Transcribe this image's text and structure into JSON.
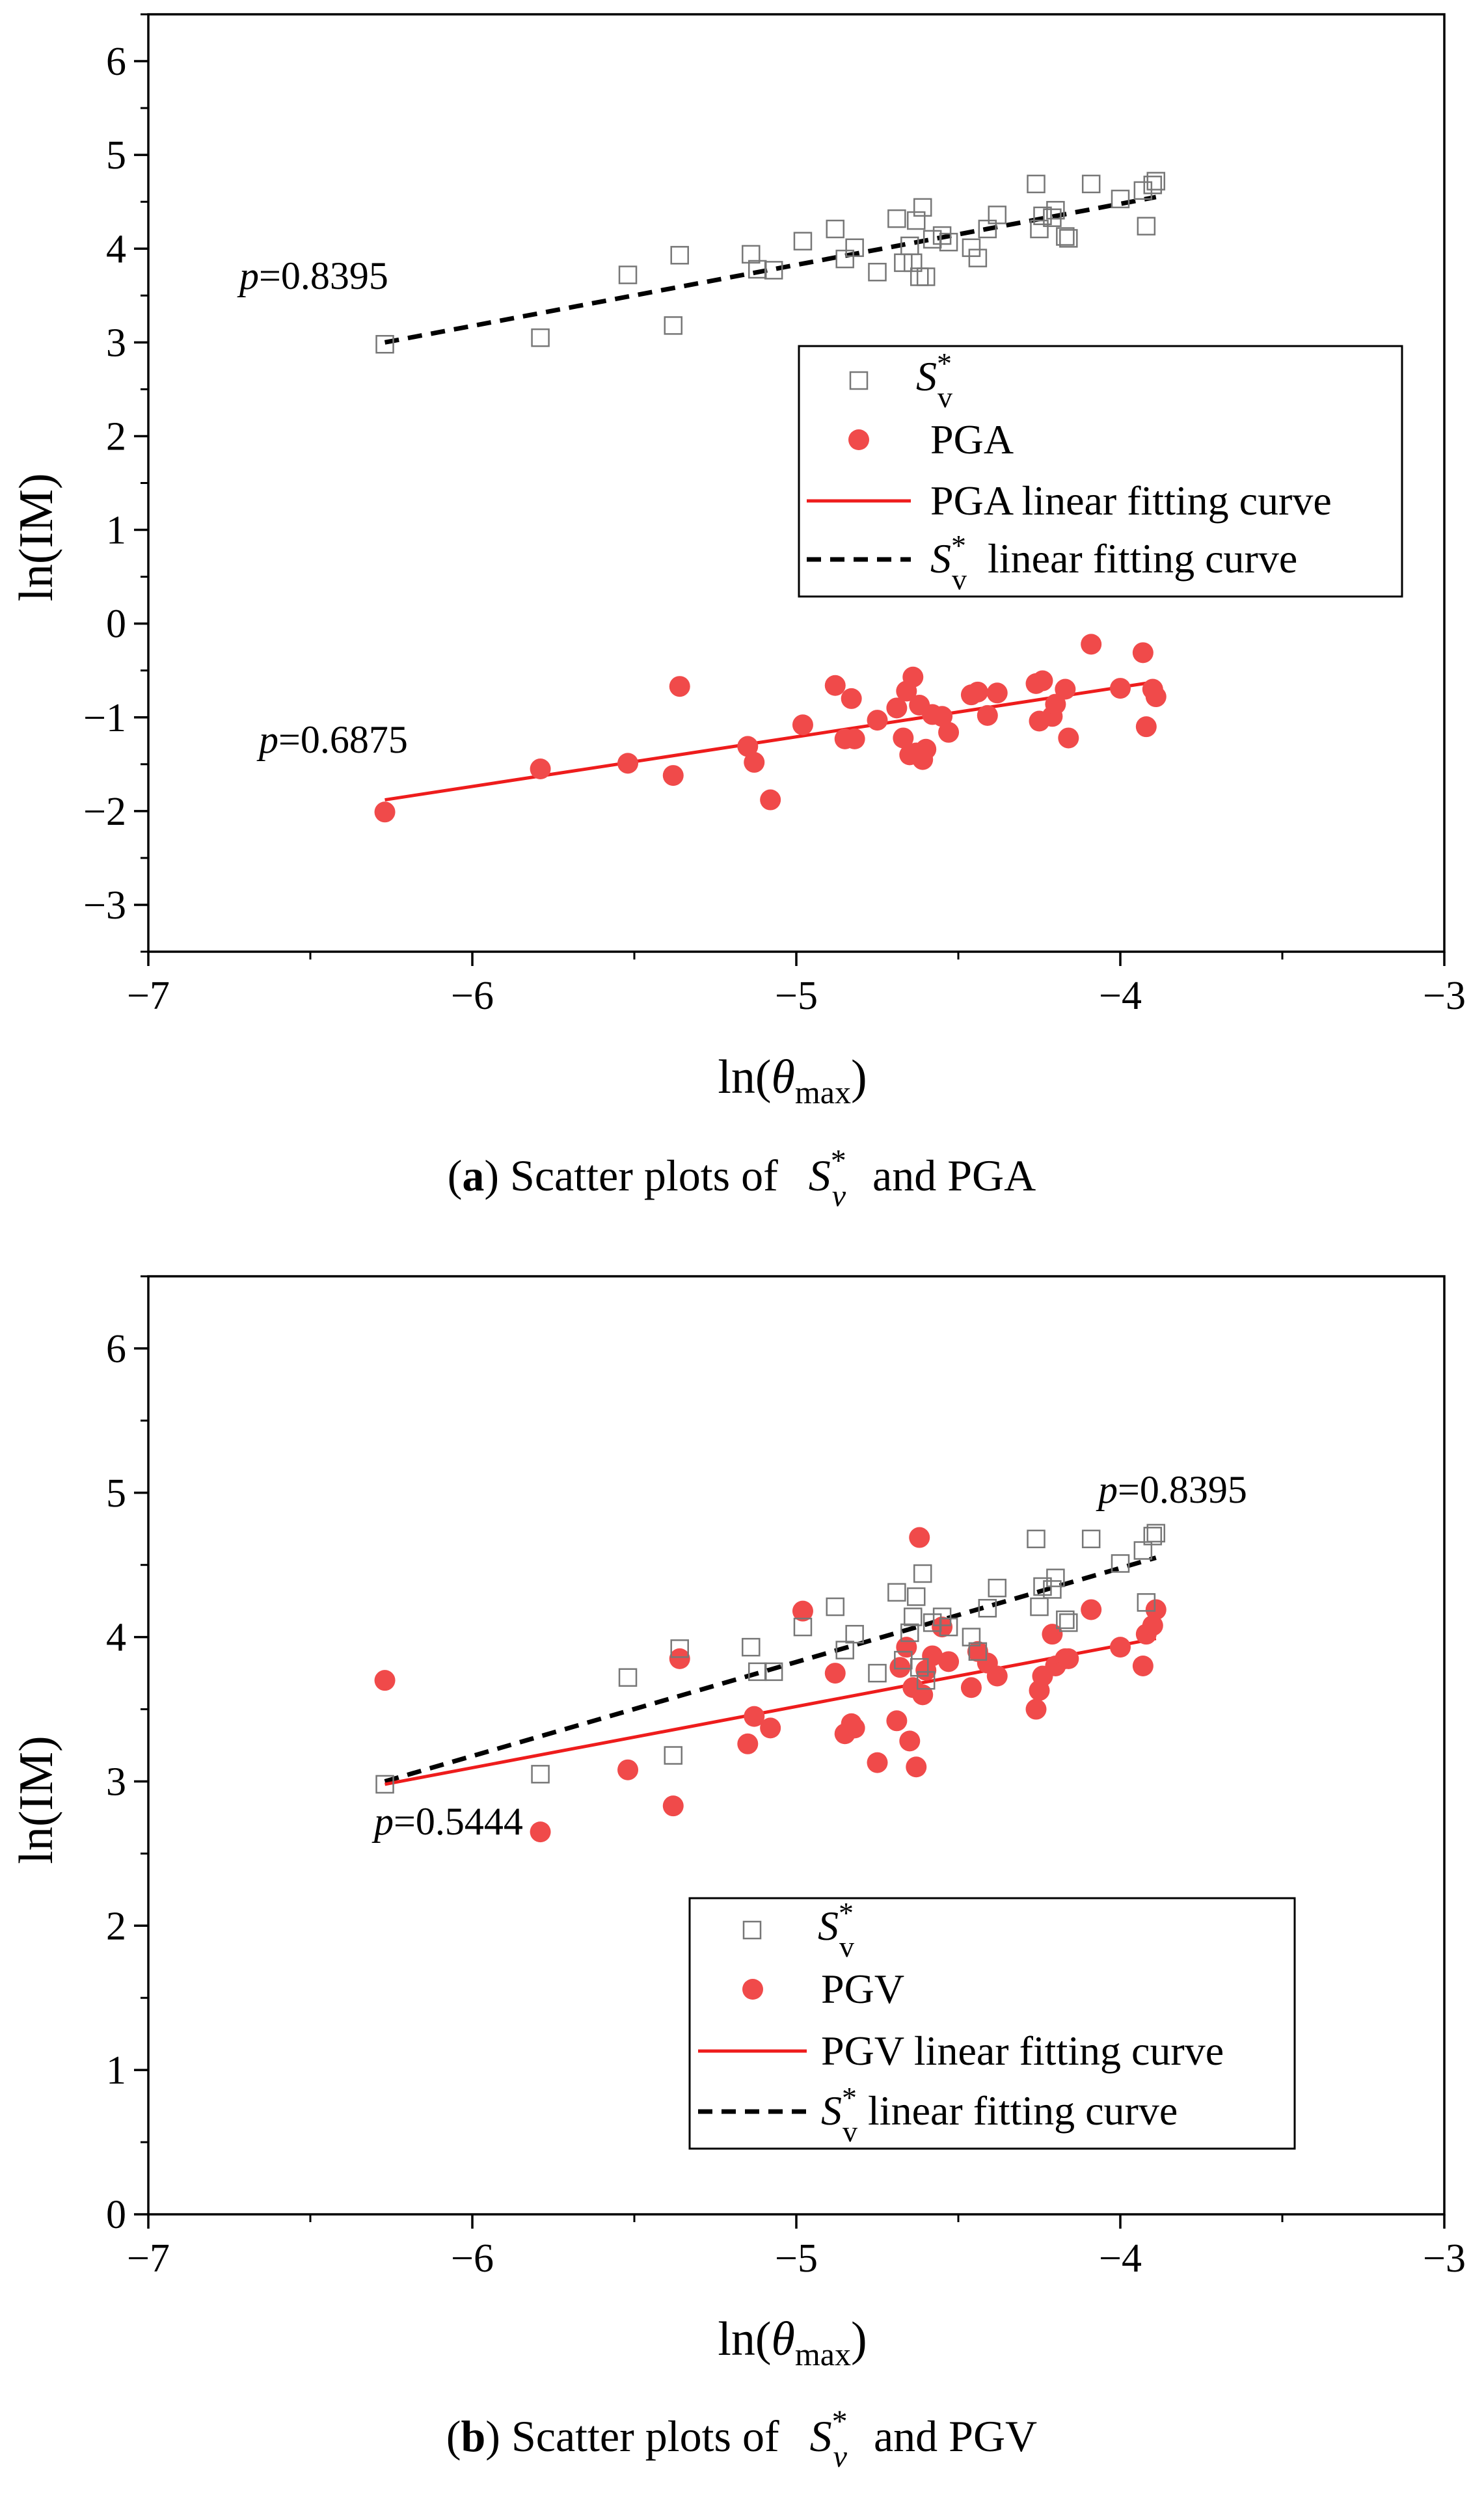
{
  "colors": {
    "pga": "#f04a4a",
    "pgv": "#f04a4a",
    "fit_red": "#ee1c1c",
    "sv_marker": "#777777",
    "dashed": "#000000"
  },
  "chart_data": [
    {
      "type": "scatter",
      "panel": "a",
      "caption": {
        "letter": "a",
        "paren_open": "(",
        "paren_close": ")",
        "text": " Scatter plots of ",
        "sv_base": "S",
        "sv_sup": "*",
        "sv_sub": "v",
        "tail": " and PGA"
      },
      "xlabel": {
        "prefix": "ln(",
        "symbol": "θ",
        "sub": "max",
        "suffix": ")"
      },
      "ylabel": "ln(IM)",
      "xlim": [
        -7,
        -3
      ],
      "ylim": [
        -3.5,
        6.5
      ],
      "xticks": [
        -7,
        -6,
        -5,
        -4,
        -3
      ],
      "xtick_labels": [
        "−7",
        "−6",
        "−5",
        "−4",
        "−3"
      ],
      "yticks": [
        -3,
        -2,
        -1,
        0,
        1,
        2,
        3,
        4,
        5,
        6
      ],
      "ytick_labels": [
        "−3",
        "−2",
        "−1",
        "0",
        "1",
        "2",
        "3",
        "4",
        "5",
        "6"
      ],
      "legend": {
        "position": "right-middle",
        "entries": [
          {
            "key": "sv",
            "base": "S",
            "sup": "*",
            "sub": "v",
            "rest": ""
          },
          {
            "key": "pga",
            "text": "PGA"
          },
          {
            "key": "pga_fit",
            "text": "PGA linear fitting curve"
          },
          {
            "key": "sv_fit",
            "base": "S",
            "sup": "*",
            "sub": "v",
            "rest": "  linear fitting curve"
          }
        ]
      },
      "annotations": [
        {
          "key": "sv_p",
          "label_italic": "p",
          "label_rest": "=0.8395"
        },
        {
          "key": "pga_p",
          "label_italic": "p",
          "label_rest": "=0.6875"
        }
      ],
      "series": [
        {
          "name": "Sv*",
          "marker": "square",
          "x": [
            -6.27,
            -5.79,
            -5.52,
            -5.38,
            -5.36,
            -5.14,
            -5.12,
            -5.07,
            -4.98,
            -4.88,
            -4.85,
            -4.82,
            -4.75,
            -4.69,
            -4.67,
            -4.65,
            -4.64,
            -4.63,
            -4.62,
            -4.61,
            -4.6,
            -4.58,
            -4.55,
            -4.53,
            -4.46,
            -4.44,
            -4.41,
            -4.38,
            -4.26,
            -4.25,
            -4.24,
            -4.21,
            -4.2,
            -4.17,
            -4.16,
            -4.09,
            -4.0,
            -3.93,
            -3.92,
            -3.9,
            -3.89
          ],
          "y": [
            2.98,
            3.05,
            3.72,
            3.18,
            3.93,
            3.94,
            3.78,
            3.77,
            4.08,
            4.21,
            3.89,
            4.01,
            3.75,
            4.32,
            3.85,
            4.03,
            3.85,
            4.3,
            3.7,
            4.44,
            3.7,
            4.1,
            4.14,
            4.07,
            4.01,
            3.9,
            4.21,
            4.36,
            4.69,
            4.21,
            4.35,
            4.33,
            4.41,
            4.13,
            4.11,
            4.69,
            4.53,
            4.62,
            4.24,
            4.68,
            4.72
          ]
        },
        {
          "name": "PGA",
          "marker": "circle",
          "x": [
            -6.27,
            -5.79,
            -5.52,
            -5.38,
            -5.36,
            -5.15,
            -5.13,
            -5.08,
            -4.98,
            -4.88,
            -4.85,
            -4.83,
            -4.82,
            -4.75,
            -4.69,
            -4.67,
            -4.66,
            -4.65,
            -4.64,
            -4.63,
            -4.62,
            -4.61,
            -4.6,
            -4.58,
            -4.55,
            -4.53,
            -4.46,
            -4.44,
            -4.41,
            -4.38,
            -4.26,
            -4.25,
            -4.24,
            -4.21,
            -4.2,
            -4.17,
            -4.16,
            -4.09,
            -4.0,
            -3.93,
            -3.92,
            -3.9,
            -3.89
          ],
          "y": [
            -2.01,
            -1.55,
            -1.49,
            -1.62,
            -0.67,
            -1.31,
            -1.48,
            -1.88,
            -1.08,
            -0.66,
            -1.23,
            -0.8,
            -1.23,
            -1.03,
            -0.9,
            -1.22,
            -0.72,
            -1.4,
            -0.57,
            -1.38,
            -0.87,
            -1.45,
            -1.34,
            -0.97,
            -0.99,
            -1.16,
            -0.76,
            -0.73,
            -0.98,
            -0.74,
            -0.64,
            -1.04,
            -0.61,
            -0.99,
            -0.86,
            -0.7,
            -1.22,
            -0.22,
            -0.69,
            -0.31,
            -1.1,
            -0.7,
            -0.78
          ]
        }
      ],
      "fits": [
        {
          "name": "Sv* linear fitting curve",
          "style": "dashed",
          "x": [
            -6.27,
            -3.89
          ],
          "y": [
            3.0,
            4.55
          ],
          "p": 0.8395
        },
        {
          "name": "PGA linear fitting curve",
          "style": "solid",
          "x": [
            -6.27,
            -3.89
          ],
          "y": [
            -1.88,
            -0.62
          ],
          "p": 0.6875
        }
      ]
    },
    {
      "type": "scatter",
      "panel": "b",
      "caption": {
        "letter": "b",
        "paren_open": "(",
        "paren_close": ")",
        "text": " Scatter plots of ",
        "sv_base": "S",
        "sv_sup": "*",
        "sv_sub": "v",
        "tail": " and PGV"
      },
      "xlabel": {
        "prefix": "ln(",
        "symbol": "θ",
        "sub": "max",
        "suffix": ")"
      },
      "ylabel": "ln(IM)",
      "xlim": [
        -7,
        -3
      ],
      "ylim": [
        0,
        6.5
      ],
      "xticks": [
        -7,
        -6,
        -5,
        -4,
        -3
      ],
      "xtick_labels": [
        "−7",
        "−6",
        "−5",
        "−4",
        "−3"
      ],
      "yticks": [
        0,
        1,
        2,
        3,
        4,
        5,
        6
      ],
      "ytick_labels": [
        "0",
        "1",
        "2",
        "3",
        "4",
        "5",
        "6"
      ],
      "legend": {
        "position": "bottom-right",
        "entries": [
          {
            "key": "sv",
            "base": "S",
            "sup": "*",
            "sub": "v",
            "rest": ""
          },
          {
            "key": "pgv",
            "text": "PGV"
          },
          {
            "key": "pgv_fit",
            "text": "PGV linear fitting curve"
          },
          {
            "key": "sv_fit",
            "base": "S",
            "sup": "*",
            "sub": "v",
            "rest": " linear fitting curve"
          }
        ]
      },
      "annotations": [
        {
          "key": "sv_p",
          "label_italic": "p",
          "label_rest": "=0.8395"
        },
        {
          "key": "pgv_p",
          "label_italic": "p",
          "label_rest": "=0.5444"
        }
      ],
      "series": [
        {
          "name": "Sv*",
          "marker": "square",
          "x": [
            -6.27,
            -5.79,
            -5.52,
            -5.38,
            -5.36,
            -5.14,
            -5.12,
            -5.07,
            -4.98,
            -4.88,
            -4.85,
            -4.82,
            -4.75,
            -4.69,
            -4.67,
            -4.65,
            -4.64,
            -4.63,
            -4.62,
            -4.61,
            -4.6,
            -4.58,
            -4.55,
            -4.53,
            -4.46,
            -4.44,
            -4.41,
            -4.38,
            -4.26,
            -4.25,
            -4.24,
            -4.21,
            -4.2,
            -4.17,
            -4.16,
            -4.09,
            -4.0,
            -3.93,
            -3.92,
            -3.9,
            -3.89
          ],
          "y": [
            2.98,
            3.05,
            3.72,
            3.18,
            3.92,
            3.93,
            3.76,
            3.76,
            4.07,
            4.21,
            3.91,
            4.02,
            3.75,
            4.31,
            3.84,
            4.03,
            4.14,
            4.28,
            3.79,
            4.44,
            3.7,
            4.1,
            4.14,
            4.07,
            4.0,
            3.9,
            4.2,
            4.34,
            4.68,
            4.21,
            4.35,
            4.33,
            4.41,
            4.12,
            4.1,
            4.68,
            4.51,
            4.6,
            4.24,
            4.7,
            4.72
          ]
        },
        {
          "name": "PGV",
          "marker": "circle",
          "x": [
            -6.27,
            -5.79,
            -5.52,
            -5.38,
            -5.36,
            -5.15,
            -5.13,
            -5.08,
            -4.98,
            -4.88,
            -4.85,
            -4.83,
            -4.82,
            -4.75,
            -4.69,
            -4.68,
            -4.66,
            -4.65,
            -4.64,
            -4.63,
            -4.62,
            -4.61,
            -4.6,
            -4.58,
            -4.55,
            -4.53,
            -4.46,
            -4.44,
            -4.41,
            -4.38,
            -4.26,
            -4.25,
            -4.24,
            -4.21,
            -4.2,
            -4.17,
            -4.16,
            -4.09,
            -4.0,
            -3.93,
            -3.92,
            -3.9,
            -3.89
          ],
          "y": [
            3.7,
            2.65,
            3.08,
            2.83,
            3.85,
            3.26,
            3.45,
            3.37,
            4.18,
            3.75,
            3.33,
            3.4,
            3.37,
            3.13,
            3.42,
            3.79,
            3.93,
            3.28,
            3.65,
            3.1,
            4.69,
            3.6,
            3.77,
            3.87,
            4.07,
            3.83,
            3.65,
            3.9,
            3.82,
            3.73,
            3.5,
            3.63,
            3.73,
            4.02,
            3.8,
            3.85,
            3.85,
            4.19,
            3.93,
            3.8,
            4.02,
            4.08,
            4.19
          ]
        }
      ],
      "fits": [
        {
          "name": "Sv* linear fitting curve",
          "style": "dashed",
          "x": [
            -6.27,
            -3.89
          ],
          "y": [
            3.0,
            4.55
          ],
          "p": 0.8395
        },
        {
          "name": "PGV linear fitting curve",
          "style": "solid",
          "x": [
            -6.27,
            -3.89
          ],
          "y": [
            2.98,
            3.99
          ],
          "p": 0.5444
        }
      ]
    }
  ]
}
